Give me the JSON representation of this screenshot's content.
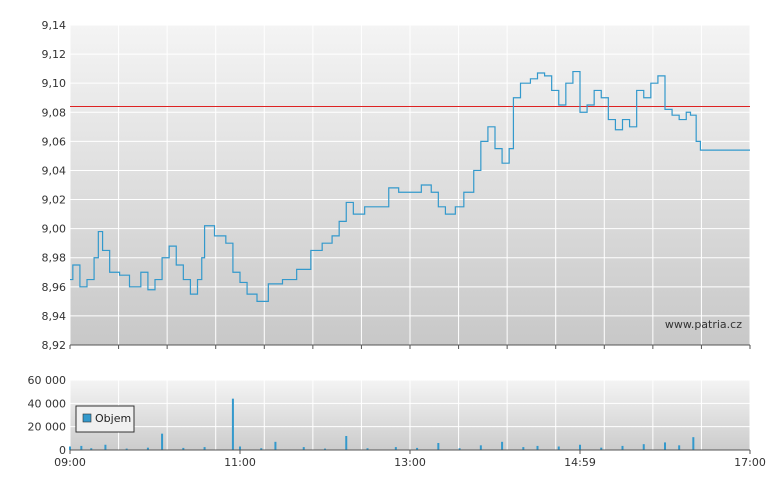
{
  "chart_data": [
    {
      "type": "line",
      "series": [
        {
          "values": [
            [
              "09:00",
              8.965
            ],
            [
              "09:02",
              8.975
            ],
            [
              "09:07",
              8.96
            ],
            [
              "09:12",
              8.965
            ],
            [
              "09:17",
              8.98
            ],
            [
              "09:20",
              8.998
            ],
            [
              "09:23",
              8.985
            ],
            [
              "09:28",
              8.97
            ],
            [
              "09:35",
              8.968
            ],
            [
              "09:42",
              8.96
            ],
            [
              "09:50",
              8.97
            ],
            [
              "09:55",
              8.958
            ],
            [
              "10:00",
              8.965
            ],
            [
              "10:05",
              8.98
            ],
            [
              "10:10",
              8.988
            ],
            [
              "10:15",
              8.975
            ],
            [
              "10:20",
              8.965
            ],
            [
              "10:25",
              8.955
            ],
            [
              "10:30",
              8.965
            ],
            [
              "10:33",
              8.98
            ],
            [
              "10:35",
              9.002
            ],
            [
              "10:42",
              8.995
            ],
            [
              "10:50",
              8.99
            ],
            [
              "10:55",
              8.97
            ],
            [
              "11:00",
              8.963
            ],
            [
              "11:05",
              8.955
            ],
            [
              "11:12",
              8.95
            ],
            [
              "11:20",
              8.962
            ],
            [
              "11:30",
              8.965
            ],
            [
              "11:40",
              8.972
            ],
            [
              "11:50",
              8.985
            ],
            [
              "11:58",
              8.99
            ],
            [
              "12:05",
              8.995
            ],
            [
              "12:10",
              9.005
            ],
            [
              "12:15",
              9.018
            ],
            [
              "12:20",
              9.01
            ],
            [
              "12:28",
              9.015
            ],
            [
              "12:40",
              9.015
            ],
            [
              "12:45",
              9.028
            ],
            [
              "12:52",
              9.025
            ],
            [
              "13:00",
              9.025
            ],
            [
              "13:08",
              9.03
            ],
            [
              "13:15",
              9.025
            ],
            [
              "13:20",
              9.015
            ],
            [
              "13:25",
              9.01
            ],
            [
              "13:32",
              9.015
            ],
            [
              "13:38",
              9.025
            ],
            [
              "13:45",
              9.04
            ],
            [
              "13:50",
              9.06
            ],
            [
              "13:55",
              9.07
            ],
            [
              "14:00",
              9.055
            ],
            [
              "14:05",
              9.045
            ],
            [
              "14:10",
              9.055
            ],
            [
              "14:13",
              9.09
            ],
            [
              "14:18",
              9.1
            ],
            [
              "14:25",
              9.103
            ],
            [
              "14:30",
              9.107
            ],
            [
              "14:35",
              9.105
            ],
            [
              "14:40",
              9.095
            ],
            [
              "14:45",
              9.085
            ],
            [
              "14:50",
              9.1
            ],
            [
              "14:55",
              9.108
            ],
            [
              "15:00",
              9.08
            ],
            [
              "15:05",
              9.085
            ],
            [
              "15:10",
              9.095
            ],
            [
              "15:15",
              9.09
            ],
            [
              "15:20",
              9.075
            ],
            [
              "15:25",
              9.068
            ],
            [
              "15:30",
              9.075
            ],
            [
              "15:35",
              9.07
            ],
            [
              "15:40",
              9.095
            ],
            [
              "15:45",
              9.09
            ],
            [
              "15:50",
              9.1
            ],
            [
              "15:55",
              9.105
            ],
            [
              "16:00",
              9.082
            ],
            [
              "16:05",
              9.078
            ],
            [
              "16:10",
              9.075
            ],
            [
              "16:15",
              9.08
            ],
            [
              "16:18",
              9.078
            ],
            [
              "16:22",
              9.06
            ],
            [
              "16:25",
              9.054
            ],
            [
              "17:00",
              9.054
            ]
          ]
        }
      ],
      "reference_line": 9.084,
      "ylim": [
        8.92,
        9.14
      ],
      "yticks": [
        "8,92",
        "8,94",
        "8,96",
        "8,98",
        "9,00",
        "9,02",
        "9,04",
        "9,06",
        "9,08",
        "9,10",
        "9,12",
        "9,14"
      ],
      "xlim": [
        "09:00",
        "17:00"
      ],
      "grid": true
    },
    {
      "type": "bar",
      "series": [
        {
          "name": "Objem",
          "values": [
            [
              "09:00",
              3000
            ],
            [
              "09:08",
              3500
            ],
            [
              "09:15",
              1500
            ],
            [
              "09:25",
              4500
            ],
            [
              "09:40",
              1200
            ],
            [
              "09:55",
              2000
            ],
            [
              "10:05",
              14000
            ],
            [
              "10:20",
              1800
            ],
            [
              "10:35",
              2500
            ],
            [
              "10:55",
              44000
            ],
            [
              "11:00",
              3000
            ],
            [
              "11:15",
              1500
            ],
            [
              "11:25",
              7000
            ],
            [
              "11:45",
              2500
            ],
            [
              "12:00",
              1200
            ],
            [
              "12:15",
              12000
            ],
            [
              "12:30",
              1500
            ],
            [
              "12:50",
              2500
            ],
            [
              "13:05",
              1800
            ],
            [
              "13:20",
              6000
            ],
            [
              "13:35",
              1500
            ],
            [
              "13:50",
              4000
            ],
            [
              "14:05",
              7000
            ],
            [
              "14:20",
              2500
            ],
            [
              "14:30",
              3500
            ],
            [
              "14:45",
              3000
            ],
            [
              "15:00",
              4500
            ],
            [
              "15:15",
              2000
            ],
            [
              "15:30",
              3500
            ],
            [
              "15:45",
              5000
            ],
            [
              "16:00",
              6500
            ],
            [
              "16:10",
              4000
            ],
            [
              "16:20",
              11000
            ]
          ]
        }
      ],
      "ylim": [
        0,
        60000
      ],
      "yticks": [
        "0",
        "20 000",
        "40 000",
        "60 000"
      ],
      "xticks": [
        "09:00",
        "11:00",
        "13:00",
        "14:59",
        "17:00"
      ],
      "grid": true
    }
  ],
  "watermark": "www.patria.cz",
  "legend_label": "Objem",
  "colors": {
    "line": "#3399cc",
    "bar": "#3399cc",
    "reference": "#dd2222",
    "grid": "#ffffff",
    "frame": "#666666"
  }
}
